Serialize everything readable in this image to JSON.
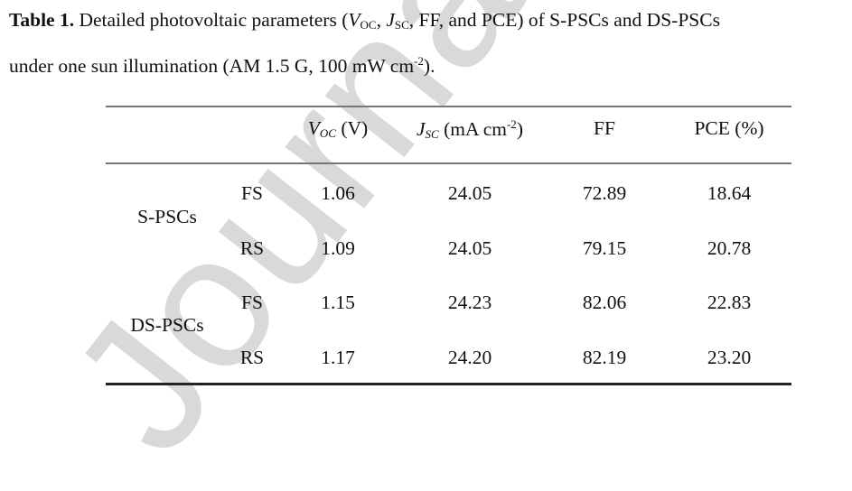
{
  "watermark": "Journal",
  "caption": {
    "label": "Table 1.",
    "text_a": " Detailed photovoltaic parameters (",
    "voc_v": "V",
    "voc_sub": "OC",
    "sep1": ", ",
    "jsc_j": "J",
    "jsc_sub": "SC",
    "text_b": ", FF, and PCE) of S-PSCs and DS-PSCs",
    "line2": "under one sun illumination (AM 1.5 G, 100 mW cm",
    "line2_sup": "-2",
    "line2_end": ")."
  },
  "table": {
    "headers": {
      "voc_v": "V",
      "voc_sub": "OC",
      "voc_unit": " (V)",
      "jsc_j": "J",
      "jsc_sub": "SC",
      "jsc_unit": " (mA cm",
      "jsc_sup": "-2",
      "jsc_close": ")",
      "ff": "FF",
      "pce": "PCE (%)"
    },
    "groups": [
      "S-PSCs",
      "DS-PSCs"
    ],
    "rows": [
      {
        "scan": "FS",
        "voc": "1.06",
        "jsc": "24.05",
        "ff": "72.89",
        "pce": "18.64"
      },
      {
        "scan": "RS",
        "voc": "1.09",
        "jsc": "24.05",
        "ff": "79.15",
        "pce": "20.78"
      },
      {
        "scan": "FS",
        "voc": "1.15",
        "jsc": "24.23",
        "ff": "82.06",
        "pce": "22.83"
      },
      {
        "scan": "RS",
        "voc": "1.17",
        "jsc": "24.20",
        "ff": "82.19",
        "pce": "23.20"
      }
    ]
  }
}
